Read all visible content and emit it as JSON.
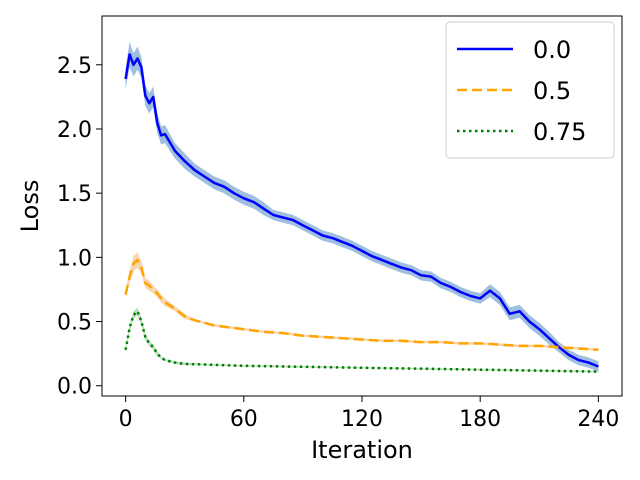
{
  "chart_data": {
    "type": "line",
    "title": "",
    "xlabel": "Iteration",
    "ylabel": "Loss",
    "xlim": [
      -12,
      252
    ],
    "ylim": [
      -0.08,
      2.88
    ],
    "xticks": [
      0,
      60,
      120,
      180,
      240
    ],
    "yticks": [
      0.0,
      0.5,
      1.0,
      1.5,
      2.0,
      2.5
    ],
    "xtick_labels": [
      "0",
      "60",
      "120",
      "180",
      "240"
    ],
    "ytick_labels": [
      "0.0",
      "0.5",
      "1.0",
      "1.5",
      "2.0",
      "2.5"
    ],
    "legend_position": "top-right",
    "grid": false,
    "series": [
      {
        "name": "0.0",
        "color": "#0000ff",
        "band_color": "#7fa9d6",
        "linestyle": "solid",
        "x": [
          0,
          2,
          4,
          6,
          8,
          10,
          12,
          14,
          16,
          18,
          20,
          25,
          30,
          35,
          40,
          45,
          50,
          55,
          60,
          65,
          70,
          75,
          80,
          85,
          90,
          95,
          100,
          105,
          110,
          115,
          120,
          125,
          130,
          135,
          140,
          145,
          150,
          155,
          160,
          165,
          170,
          175,
          180,
          185,
          190,
          195,
          200,
          205,
          210,
          215,
          220,
          225,
          230,
          235,
          240
        ],
        "y": [
          2.39,
          2.58,
          2.5,
          2.55,
          2.48,
          2.26,
          2.2,
          2.25,
          2.05,
          1.95,
          1.96,
          1.83,
          1.75,
          1.68,
          1.63,
          1.58,
          1.55,
          1.5,
          1.46,
          1.43,
          1.38,
          1.33,
          1.31,
          1.29,
          1.25,
          1.21,
          1.17,
          1.15,
          1.12,
          1.09,
          1.05,
          1.01,
          0.98,
          0.95,
          0.92,
          0.9,
          0.86,
          0.85,
          0.8,
          0.77,
          0.73,
          0.7,
          0.68,
          0.74,
          0.68,
          0.56,
          0.58,
          0.5,
          0.44,
          0.37,
          0.3,
          0.24,
          0.2,
          0.18,
          0.15
        ],
        "band": [
          0.08,
          0.1,
          0.09,
          0.09,
          0.08,
          0.08,
          0.08,
          0.08,
          0.08,
          0.07,
          0.07,
          0.06,
          0.06,
          0.05,
          0.05,
          0.05,
          0.05,
          0.05,
          0.05,
          0.05,
          0.05,
          0.04,
          0.04,
          0.04,
          0.04,
          0.04,
          0.04,
          0.04,
          0.04,
          0.04,
          0.04,
          0.04,
          0.04,
          0.04,
          0.04,
          0.04,
          0.04,
          0.04,
          0.04,
          0.04,
          0.04,
          0.04,
          0.04,
          0.05,
          0.05,
          0.05,
          0.05,
          0.05,
          0.05,
          0.05,
          0.04,
          0.04,
          0.04,
          0.04,
          0.04
        ]
      },
      {
        "name": "0.5",
        "color": "#ffa500",
        "band_color": "#f7c898",
        "linestyle": "dashed",
        "x": [
          0,
          2,
          4,
          6,
          8,
          10,
          12,
          14,
          16,
          18,
          20,
          25,
          30,
          35,
          40,
          45,
          50,
          60,
          70,
          80,
          90,
          100,
          110,
          120,
          130,
          140,
          150,
          160,
          170,
          180,
          190,
          200,
          210,
          220,
          230,
          240
        ],
        "y": [
          0.71,
          0.85,
          0.95,
          0.98,
          0.92,
          0.8,
          0.78,
          0.75,
          0.72,
          0.68,
          0.65,
          0.6,
          0.54,
          0.51,
          0.49,
          0.47,
          0.46,
          0.44,
          0.42,
          0.41,
          0.39,
          0.38,
          0.37,
          0.36,
          0.35,
          0.35,
          0.34,
          0.34,
          0.33,
          0.33,
          0.32,
          0.31,
          0.31,
          0.3,
          0.29,
          0.28
        ],
        "band": [
          0.03,
          0.05,
          0.06,
          0.06,
          0.05,
          0.04,
          0.04,
          0.03,
          0.03,
          0.03,
          0.03,
          0.02,
          0.02,
          0.01,
          0.01,
          0.01,
          0.01,
          0.01,
          0.01,
          0.01,
          0.01,
          0.01,
          0.01,
          0.01,
          0.01,
          0.01,
          0.01,
          0.01,
          0.01,
          0.01,
          0.01,
          0.01,
          0.01,
          0.01,
          0.01,
          0.01
        ]
      },
      {
        "name": "0.75",
        "color": "#008000",
        "band_color": "#a8d4a8",
        "linestyle": "dotted",
        "x": [
          0,
          2,
          4,
          6,
          8,
          10,
          12,
          14,
          16,
          18,
          20,
          25,
          30,
          40,
          50,
          60,
          80,
          100,
          120,
          140,
          160,
          180,
          200,
          220,
          240
        ],
        "y": [
          0.28,
          0.45,
          0.55,
          0.58,
          0.5,
          0.38,
          0.33,
          0.3,
          0.25,
          0.22,
          0.2,
          0.18,
          0.17,
          0.165,
          0.16,
          0.155,
          0.15,
          0.145,
          0.14,
          0.135,
          0.13,
          0.125,
          0.12,
          0.115,
          0.11
        ],
        "band": [
          0.02,
          0.03,
          0.03,
          0.03,
          0.03,
          0.03,
          0.02,
          0.02,
          0.02,
          0.01,
          0.01,
          0.01,
          0.01,
          0.005,
          0.005,
          0.005,
          0.005,
          0.005,
          0.005,
          0.005,
          0.005,
          0.005,
          0.005,
          0.005,
          0.005
        ]
      }
    ]
  }
}
